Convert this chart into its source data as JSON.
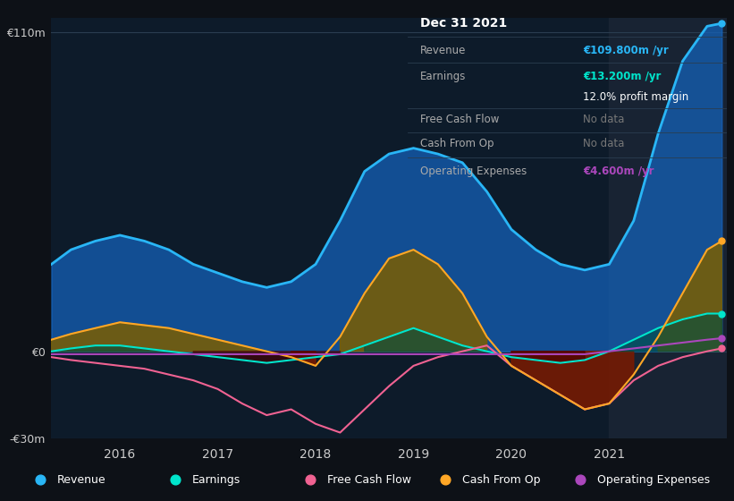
{
  "bg_color": "#0d1117",
  "chart_bg": "#0d1b2a",
  "grid_color": "#1e2d3d",
  "ylim": [
    -30,
    115
  ],
  "xlim": [
    2015.3,
    2022.2
  ],
  "yticks": [
    -30,
    0,
    110
  ],
  "ytick_labels": [
    "-€30m",
    "€0",
    "€110m"
  ],
  "xticks": [
    2016,
    2017,
    2018,
    2019,
    2020,
    2021
  ],
  "colors": {
    "revenue": "#29b6f6",
    "earnings": "#00e5cc",
    "free_cash_flow": "#f06292",
    "cash_from_op": "#ffa726",
    "op_expenses": "#ab47bc"
  },
  "fill_colors": {
    "revenue": "#1565c0",
    "cash_from_op_pos": "#7b5e00",
    "cash_from_op_neg": "#7b1a00",
    "earnings_pos": "#004d40",
    "earnings_neg": "#4a0000"
  },
  "info_box": {
    "title": "Dec 31 2021",
    "revenue": "€109.800m /yr",
    "earnings": "€13.200m /yr",
    "profit_margin": "12.0% profit margin",
    "free_cash_flow": "No data",
    "cash_from_op": "No data",
    "op_expenses": "€4.600m /yr"
  },
  "legend": [
    {
      "label": "Revenue",
      "color": "#29b6f6"
    },
    {
      "label": "Earnings",
      "color": "#00e5cc"
    },
    {
      "label": "Free Cash Flow",
      "color": "#f06292"
    },
    {
      "label": "Cash From Op",
      "color": "#ffa726"
    },
    {
      "label": "Operating Expenses",
      "color": "#ab47bc"
    }
  ],
  "x": [
    2015.3,
    2015.5,
    2015.75,
    2016.0,
    2016.25,
    2016.5,
    2016.75,
    2017.0,
    2017.25,
    2017.5,
    2017.75,
    2018.0,
    2018.25,
    2018.5,
    2018.75,
    2019.0,
    2019.25,
    2019.5,
    2019.75,
    2020.0,
    2020.25,
    2020.5,
    2020.75,
    2021.0,
    2021.25,
    2021.5,
    2021.75,
    2022.0,
    2022.15
  ],
  "revenue": [
    30,
    35,
    38,
    40,
    38,
    35,
    30,
    27,
    24,
    22,
    24,
    30,
    45,
    62,
    68,
    70,
    68,
    65,
    55,
    42,
    35,
    30,
    28,
    30,
    45,
    75,
    100,
    112,
    113
  ],
  "earnings": [
    0,
    1,
    2,
    2,
    1,
    0,
    -1,
    -2,
    -3,
    -4,
    -3,
    -2,
    -1,
    2,
    5,
    8,
    5,
    2,
    0,
    -2,
    -3,
    -4,
    -3,
    0,
    4,
    8,
    11,
    13,
    13
  ],
  "free_cash_flow": [
    -2,
    -3,
    -4,
    -5,
    -6,
    -8,
    -10,
    -13,
    -18,
    -22,
    -20,
    -25,
    -28,
    -20,
    -12,
    -5,
    -2,
    0,
    2,
    -5,
    -10,
    -15,
    -20,
    -18,
    -10,
    -5,
    -2,
    0,
    1
  ],
  "cash_from_op": [
    4,
    6,
    8,
    10,
    9,
    8,
    6,
    4,
    2,
    0,
    -2,
    -5,
    5,
    20,
    32,
    35,
    30,
    20,
    5,
    -5,
    -10,
    -15,
    -20,
    -18,
    -8,
    5,
    20,
    35,
    38
  ],
  "op_expenses": [
    -1,
    -1,
    -1,
    -1,
    -1,
    -1,
    -1,
    -1,
    -1,
    -1,
    -1,
    -1,
    -1,
    -1,
    -1,
    -1,
    -1,
    -1,
    -1,
    -1,
    -1,
    -1,
    -1,
    0,
    1,
    2,
    3,
    4,
    4.5
  ]
}
